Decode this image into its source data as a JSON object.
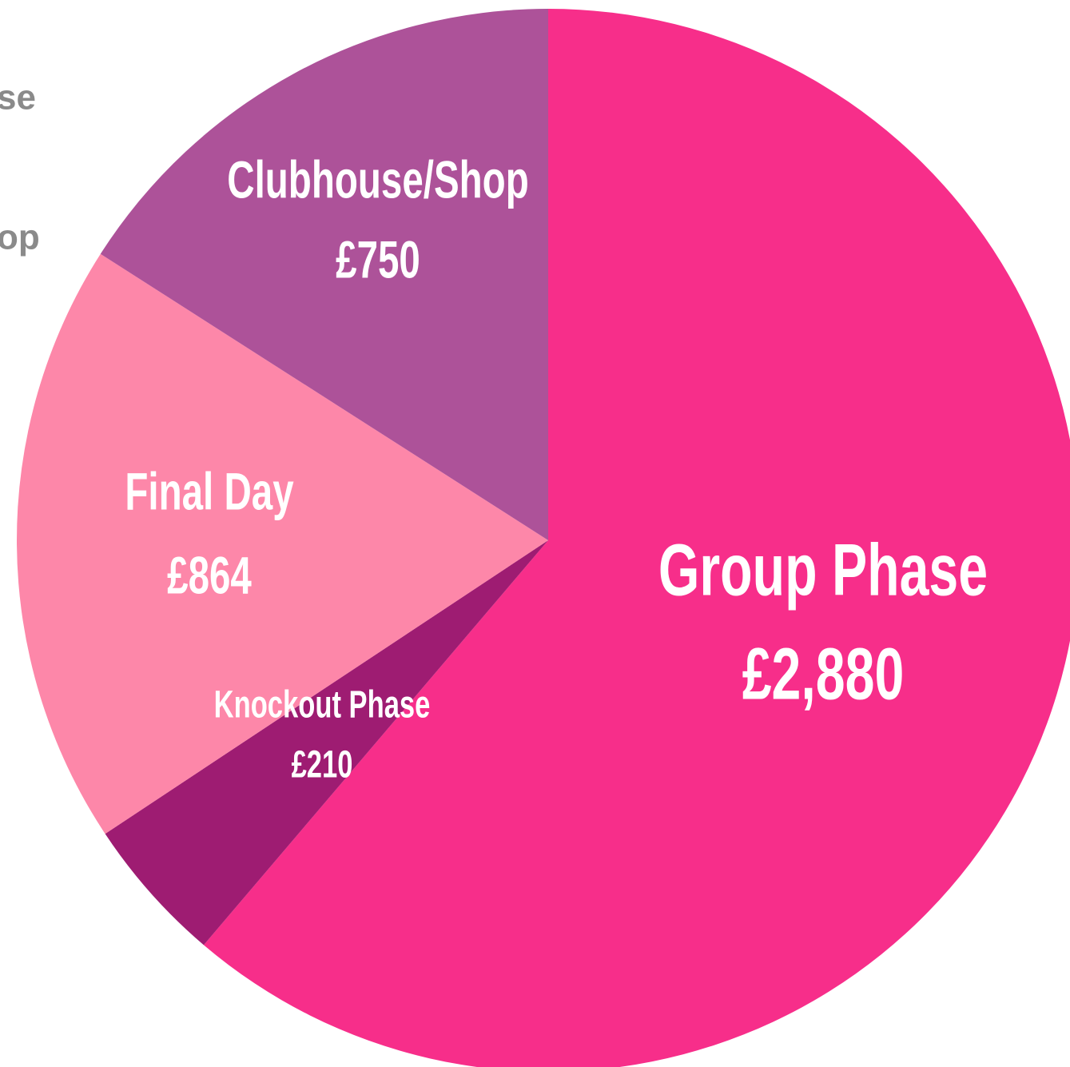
{
  "chart_data": {
    "type": "pie",
    "categories": [
      "Group Phase",
      "Knockout Phase",
      "Final Day",
      "Clubhouse/Shop"
    ],
    "values": [
      2880,
      210,
      864,
      750
    ],
    "value_labels": [
      "£2,880",
      "£210",
      "£864",
      "£750"
    ],
    "colors": [
      "#f72e8a",
      "#9e1c72",
      "#fd87a9",
      "#ad5299"
    ],
    "start_angle": 0,
    "direction": "clockwise",
    "legend_fragments": [
      "se",
      "op"
    ]
  }
}
